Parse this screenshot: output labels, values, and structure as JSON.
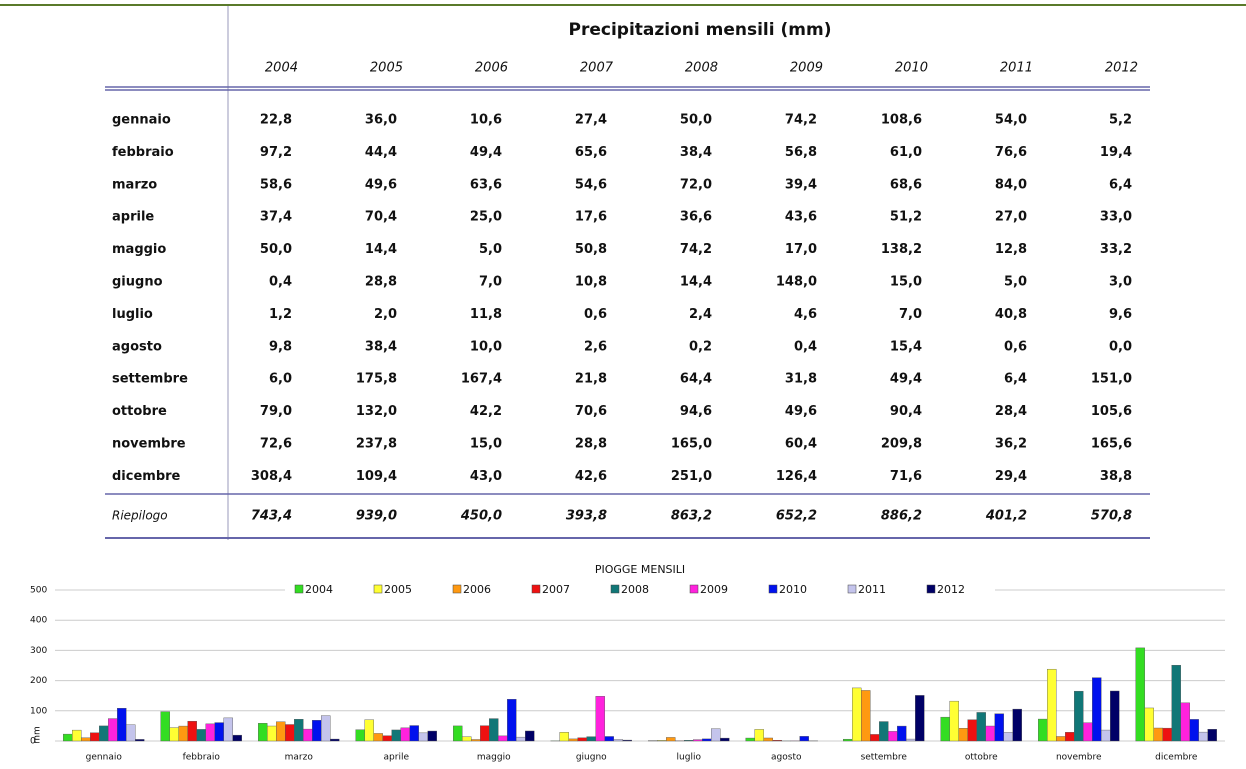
{
  "table": {
    "title": "Precipitazioni mensili (mm)",
    "columns": [
      "2004",
      "2005",
      "2006",
      "2007",
      "2008",
      "2009",
      "2010",
      "2011",
      "2012"
    ],
    "rows": [
      [
        "gennaio",
        "22,8",
        "36,0",
        "10,6",
        "27,4",
        "50,0",
        "74,2",
        "108,6",
        "54,0",
        "5,2"
      ],
      [
        "febbraio",
        "97,2",
        "44,4",
        "49,4",
        "65,6",
        "38,4",
        "56,8",
        "61,0",
        "76,6",
        "19,4"
      ],
      [
        "marzo",
        "58,6",
        "49,6",
        "63,6",
        "54,6",
        "72,0",
        "39,4",
        "68,6",
        "84,0",
        "6,4"
      ],
      [
        "aprile",
        "37,4",
        "70,4",
        "25,0",
        "17,6",
        "36,6",
        "43,6",
        "51,2",
        "27,0",
        "33,0"
      ],
      [
        "maggio",
        "50,0",
        "14,4",
        "5,0",
        "50,8",
        "74,2",
        "17,0",
        "138,2",
        "12,8",
        "33,2"
      ],
      [
        "giugno",
        "0,4",
        "28,8",
        "7,0",
        "10,8",
        "14,4",
        "148,0",
        "15,0",
        "5,0",
        "3,0"
      ],
      [
        "luglio",
        "1,2",
        "2,0",
        "11,8",
        "0,6",
        "2,4",
        "4,6",
        "7,0",
        "40,8",
        "9,6"
      ],
      [
        "agosto",
        "9,8",
        "38,4",
        "10,0",
        "2,6",
        "0,2",
        "0,4",
        "15,4",
        "0,6",
        "0,0"
      ],
      [
        "settembre",
        "6,0",
        "175,8",
        "167,4",
        "21,8",
        "64,4",
        "31,8",
        "49,4",
        "6,4",
        "151,0"
      ],
      [
        "ottobre",
        "79,0",
        "132,0",
        "42,2",
        "70,6",
        "94,6",
        "49,6",
        "90,4",
        "28,4",
        "105,6"
      ],
      [
        "novembre",
        "72,6",
        "237,8",
        "15,0",
        "28,8",
        "165,0",
        "60,4",
        "209,8",
        "36,2",
        "165,6"
      ],
      [
        "dicembre",
        "308,4",
        "109,4",
        "43,0",
        "42,6",
        "251,0",
        "126,4",
        "71,6",
        "29,4",
        "38,8"
      ]
    ],
    "summary": [
      "Riepilogo",
      "743,4",
      "939,0",
      "450,0",
      "393,8",
      "863,2",
      "652,2",
      "886,2",
      "401,2",
      "570,8"
    ]
  },
  "chart_data": {
    "type": "bar",
    "title": "PIOGGE MENSILI",
    "y_label": "mm",
    "categories": [
      "gennaio",
      "febbraio",
      "marzo",
      "aprile",
      "maggio",
      "giugno",
      "luglio",
      "agosto",
      "settembre",
      "ottobre",
      "novembre",
      "dicembre"
    ],
    "ylim": [
      0,
      500
    ],
    "yticks": [
      0,
      100,
      200,
      300,
      400,
      500
    ],
    "grid": true,
    "series": [
      {
        "name": "2004",
        "color": "#33dd22",
        "values": [
          22.8,
          97.2,
          58.6,
          37.4,
          50.0,
          0.4,
          1.2,
          9.8,
          6.0,
          79.0,
          72.6,
          308.4
        ]
      },
      {
        "name": "2005",
        "color": "#ffff33",
        "values": [
          36.0,
          44.4,
          49.6,
          70.4,
          14.4,
          28.8,
          2.0,
          38.4,
          175.8,
          132.0,
          237.8,
          109.4
        ]
      },
      {
        "name": "2006",
        "color": "#ff9911",
        "values": [
          10.6,
          49.4,
          63.6,
          25.0,
          5.0,
          7.0,
          11.8,
          10.0,
          167.4,
          42.2,
          15.0,
          43.0
        ]
      },
      {
        "name": "2007",
        "color": "#ee1111",
        "values": [
          27.4,
          65.6,
          54.6,
          17.6,
          50.8,
          10.8,
          0.6,
          2.6,
          21.8,
          70.6,
          28.8,
          42.6
        ]
      },
      {
        "name": "2008",
        "color": "#117777",
        "values": [
          50.0,
          38.4,
          72.0,
          36.6,
          74.2,
          14.4,
          2.4,
          0.2,
          64.4,
          94.6,
          165.0,
          251.0
        ]
      },
      {
        "name": "2009",
        "color": "#ff22dd",
        "values": [
          74.2,
          56.8,
          39.4,
          43.6,
          17.0,
          148.0,
          4.6,
          0.4,
          31.8,
          49.6,
          60.4,
          126.4
        ]
      },
      {
        "name": "2010",
        "color": "#0011ee",
        "values": [
          108.6,
          61.0,
          68.6,
          51.2,
          138.2,
          15.0,
          7.0,
          15.4,
          49.4,
          90.4,
          209.8,
          71.6
        ]
      },
      {
        "name": "2011",
        "color": "#c4c4ec",
        "values": [
          54.0,
          76.6,
          84.0,
          27.0,
          12.8,
          5.0,
          40.8,
          0.6,
          6.4,
          28.4,
          36.2,
          29.4
        ]
      },
      {
        "name": "2012",
        "color": "#000066",
        "values": [
          5.2,
          19.4,
          6.4,
          33.0,
          33.2,
          3.0,
          9.6,
          0.0,
          151.0,
          105.6,
          165.6,
          38.8
        ]
      }
    ]
  }
}
